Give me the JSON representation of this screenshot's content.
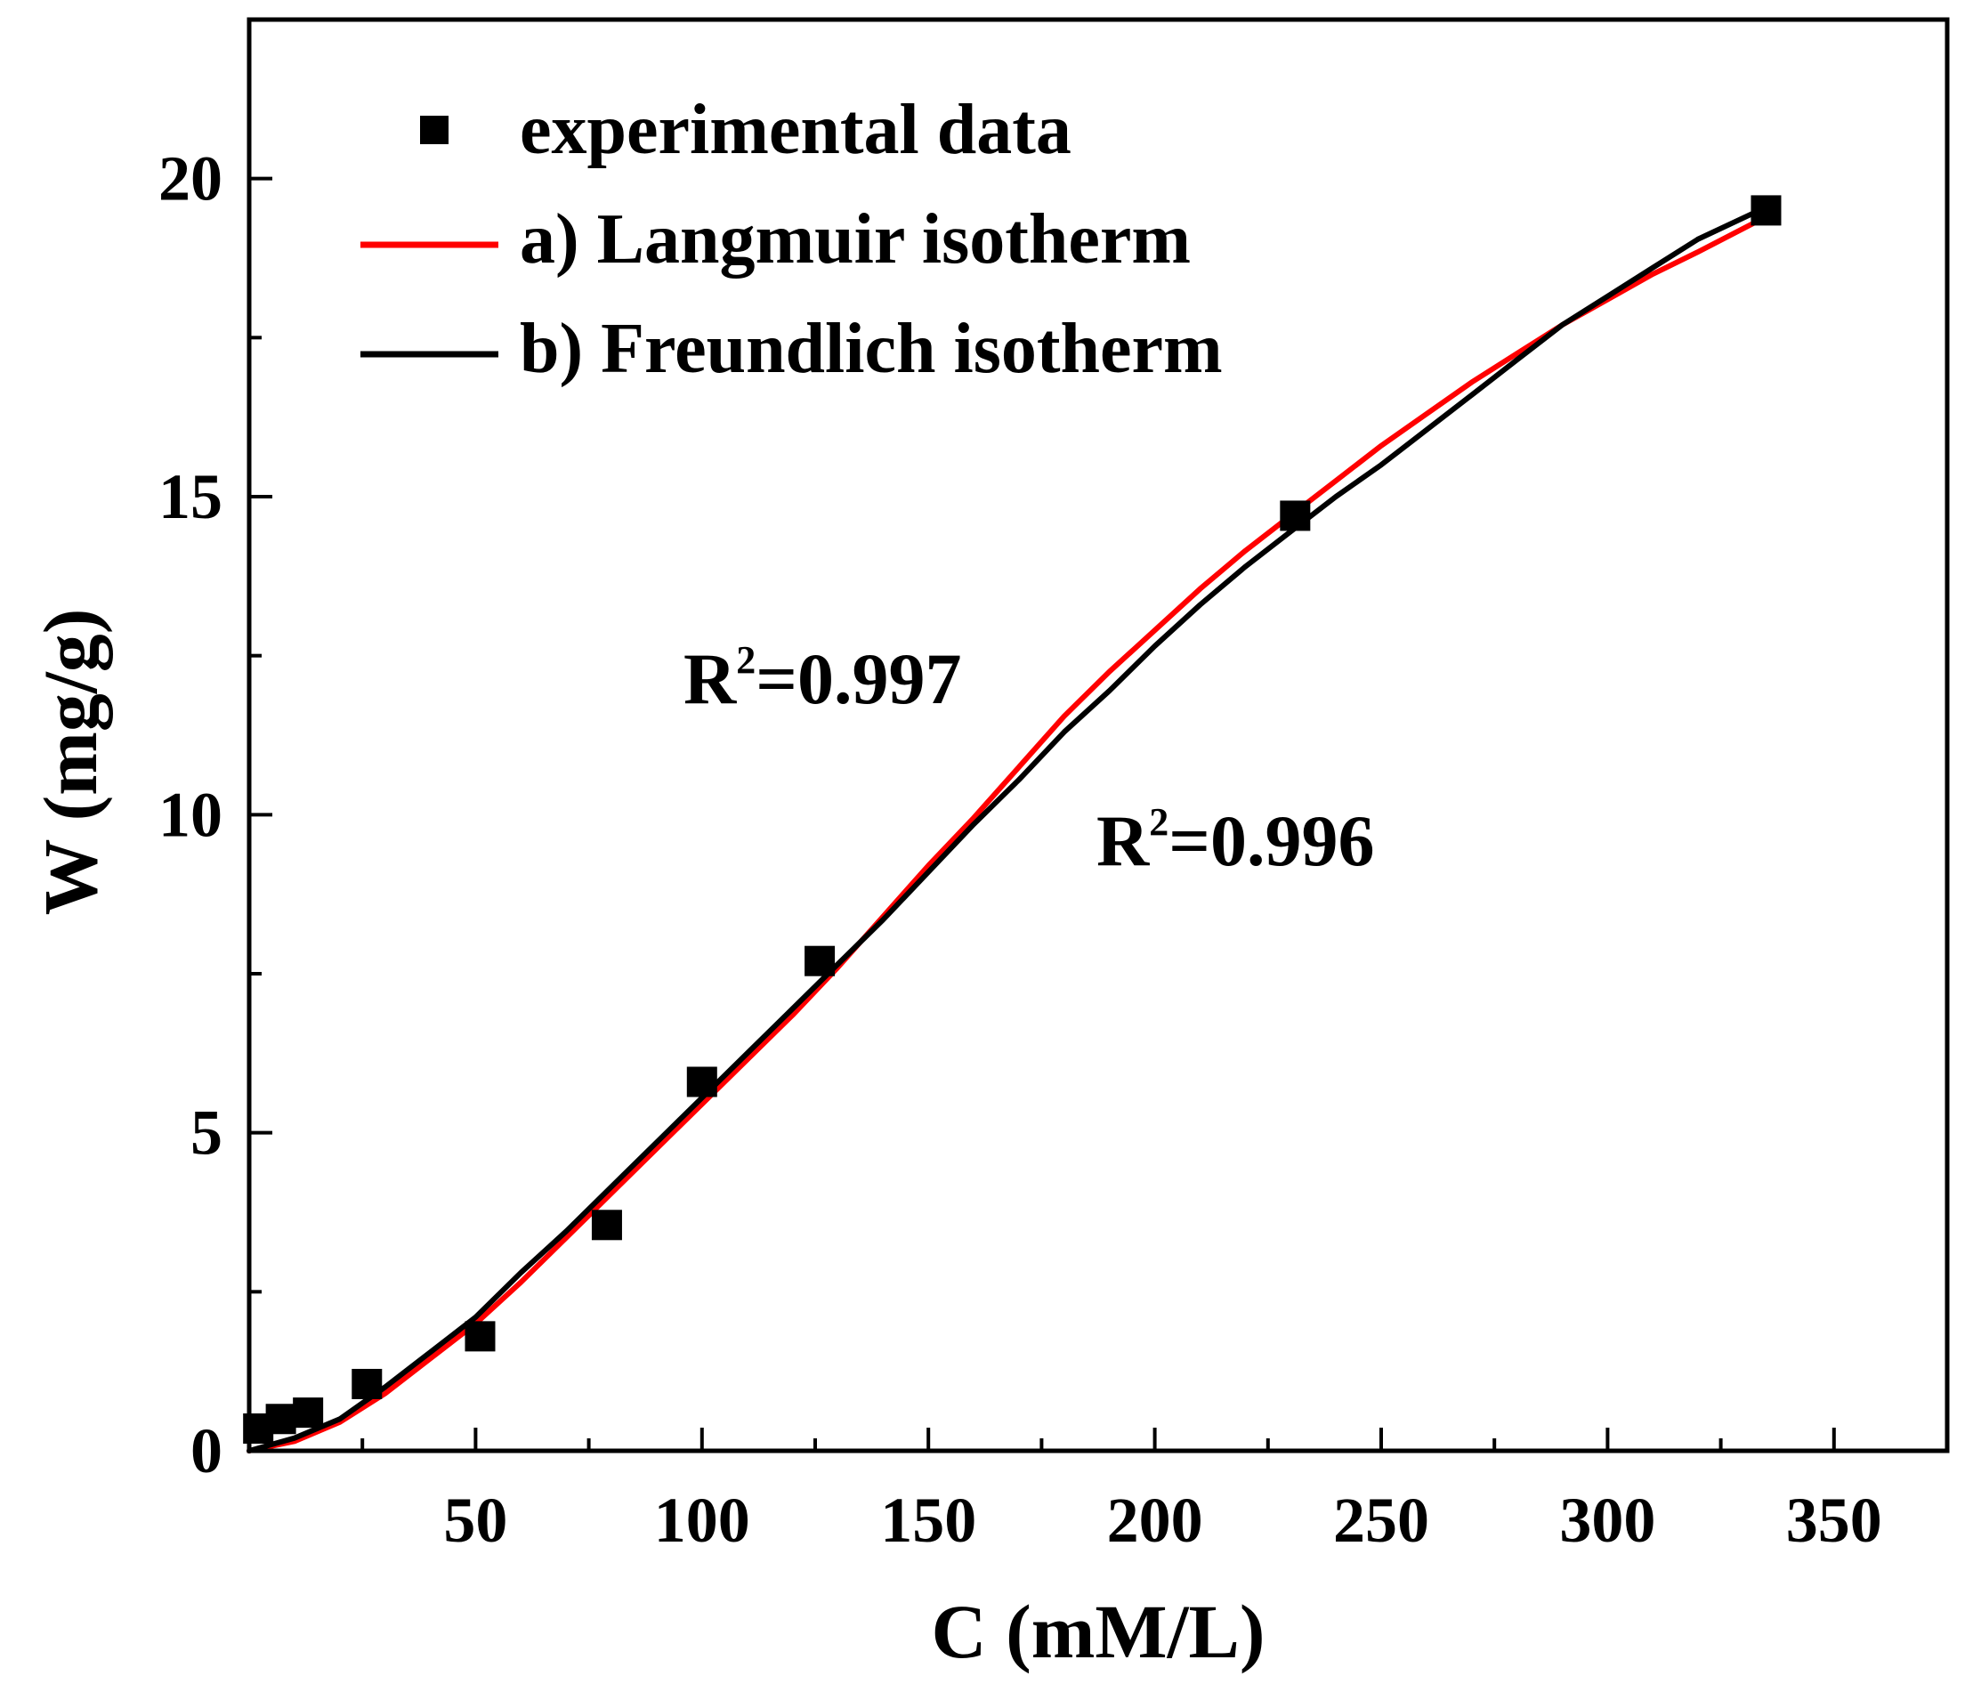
{
  "chart_data": {
    "type": "scatter",
    "xlabel": "C (mM/L)",
    "ylabel": "W (mg/g)",
    "xlim": [
      0,
      375
    ],
    "ylim": [
      0,
      22.5
    ],
    "xticks": [
      50,
      100,
      150,
      200,
      250,
      300,
      350
    ],
    "xtick_labels": [
      "50",
      "100",
      "150",
      "200",
      "250",
      "300",
      "350"
    ],
    "xminor": [
      25,
      75,
      125,
      175,
      225,
      275,
      325
    ],
    "yticks": [
      0,
      5,
      10,
      15,
      20
    ],
    "ytick_labels": [
      "0",
      "5",
      "10",
      "15",
      "20"
    ],
    "yminor": [
      2.5,
      7.5,
      12.5,
      17.5
    ],
    "grid": false,
    "legend_position": "top-left",
    "series": [
      {
        "name": "experimental data",
        "kind": "markers",
        "color": "#000000",
        "marker": "square",
        "x": [
          2,
          7,
          13,
          26,
          51,
          79,
          100,
          126,
          231,
          335
        ],
        "y": [
          0.35,
          0.5,
          0.6,
          1.05,
          1.8,
          3.55,
          5.8,
          7.7,
          14.7,
          19.5
        ]
      },
      {
        "name": "a) Langmuir isotherm",
        "kind": "line",
        "color": "#ff0000",
        "x": [
          0,
          10,
          20,
          30,
          40,
          50,
          60,
          70,
          80,
          90,
          100,
          110,
          120,
          130,
          140,
          150,
          160,
          170,
          180,
          190,
          200,
          210,
          220,
          230,
          240,
          250,
          260,
          270,
          280,
          290,
          300,
          310,
          320,
          335
        ],
        "y": [
          0,
          0.15,
          0.45,
          0.9,
          1.45,
          2.0,
          2.65,
          3.35,
          4.05,
          4.75,
          5.45,
          6.15,
          6.85,
          7.6,
          8.4,
          9.2,
          9.95,
          10.75,
          11.55,
          12.25,
          12.9,
          13.55,
          14.15,
          14.7,
          15.25,
          15.8,
          16.3,
          16.8,
          17.25,
          17.7,
          18.1,
          18.5,
          18.85,
          19.4
        ]
      },
      {
        "name": "b) Freundlich isotherm",
        "kind": "line",
        "color": "#000000",
        "x": [
          0,
          10,
          20,
          30,
          40,
          50,
          60,
          70,
          80,
          90,
          100,
          110,
          120,
          130,
          140,
          150,
          160,
          170,
          180,
          190,
          200,
          210,
          220,
          230,
          240,
          250,
          260,
          270,
          280,
          290,
          300,
          310,
          320,
          335
        ],
        "y": [
          0,
          0.2,
          0.5,
          1.0,
          1.55,
          2.1,
          2.8,
          3.45,
          4.15,
          4.85,
          5.55,
          6.25,
          6.95,
          7.65,
          8.35,
          9.1,
          9.85,
          10.55,
          11.3,
          11.95,
          12.65,
          13.3,
          13.9,
          14.45,
          15.0,
          15.5,
          16.05,
          16.6,
          17.15,
          17.7,
          18.15,
          18.6,
          19.05,
          19.55
        ]
      }
    ],
    "annotations": [
      {
        "base": "R",
        "sup": "2",
        "value": "=0.997",
        "color": "#ff0000"
      },
      {
        "base": "R",
        "sup": "2",
        "value": "=0.996",
        "color": "#000000"
      }
    ]
  }
}
